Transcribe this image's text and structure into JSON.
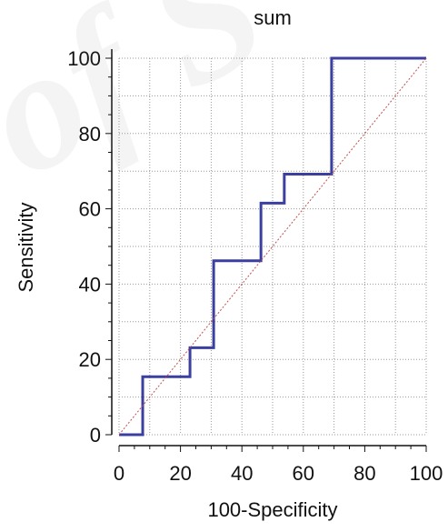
{
  "chart_data": {
    "type": "line",
    "title": "sum",
    "xlabel": "100-Specificity",
    "ylabel": "Sensitivity",
    "xlim": [
      0,
      100
    ],
    "ylim": [
      0,
      100
    ],
    "xticks": [
      0,
      20,
      40,
      60,
      80,
      100
    ],
    "yticks": [
      0,
      20,
      40,
      60,
      80,
      100
    ],
    "grid": true,
    "series": [
      {
        "style": "step",
        "color": "#3b3fa0",
        "x": [
          0,
          7.7,
          7.7,
          23.1,
          23.1,
          30.8,
          30.8,
          46.2,
          46.2,
          53.8,
          53.8,
          69.2,
          69.2,
          100
        ],
        "y": [
          0,
          0,
          15.4,
          15.4,
          23.1,
          23.1,
          46.2,
          46.2,
          61.5,
          61.5,
          69.2,
          69.2,
          100,
          100
        ]
      },
      {
        "style": "diagonal-reference",
        "color": "#c0504d",
        "x": [
          0,
          100
        ],
        "y": [
          0,
          100
        ]
      }
    ]
  }
}
